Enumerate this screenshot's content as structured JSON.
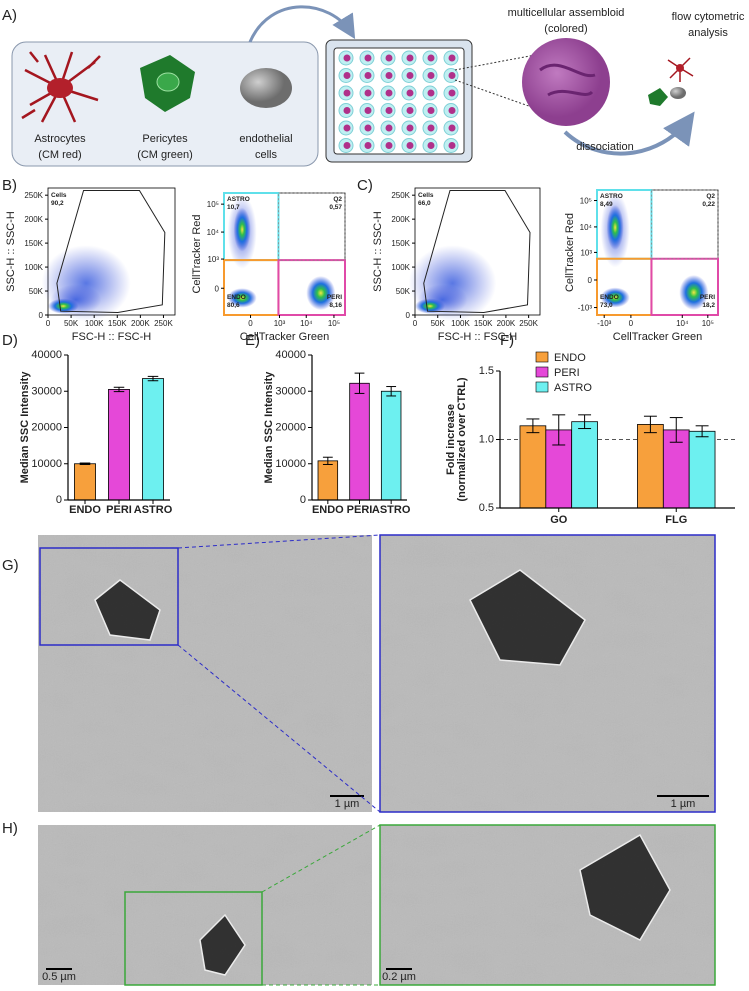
{
  "panel_a": {
    "label": "A)",
    "cells": [
      {
        "name": "Astrocytes",
        "stain": "(CM red)"
      },
      {
        "name": "Pericytes",
        "stain": "(CM green)"
      },
      {
        "name": "endothelial",
        "stain": "cells"
      }
    ],
    "assembloid": [
      "multicellular assembloid",
      "(colored)"
    ],
    "analysis": [
      "flow cytometric",
      "analysis"
    ],
    "step": "dissociation"
  },
  "flow": [
    {
      "label": "B)",
      "plots": [
        {
          "xlabel": "FSC-H :: FSC-H",
          "ylabel": "SSC-H :: SSC-H",
          "scale": "linear",
          "xlim": [
            0,
            275000
          ],
          "ylim": [
            0,
            265000
          ],
          "xticks": [
            0,
            {
              "value": 50000,
              "label": "50K"
            },
            {
              "value": 100000,
              "label": "100K"
            },
            {
              "value": 150000,
              "label": "150K"
            },
            {
              "value": 200000,
              "label": "200K"
            },
            {
              "value": 250000,
              "label": "250K"
            }
          ],
          "yticks": [
            0,
            {
              "value": 50000,
              "label": "50K"
            },
            {
              "value": 100000,
              "label": "100K"
            },
            {
              "value": 150000,
              "label": "150K"
            },
            {
              "value": 200000,
              "label": "200K"
            },
            {
              "value": 250000,
              "label": "250K"
            }
          ],
          "gates": [
            {
              "name": "Cells",
              "pct": "90,2"
            }
          ]
        },
        {
          "xlabel": "CellTracker Green",
          "ylabel": "CellTracker Red",
          "scale": "biex",
          "xlim": [
            -800,
            250000
          ],
          "ylim": [
            -800,
            250000
          ],
          "xticks": [
            0,
            {
              "value": 1000,
              "label": "10³"
            },
            {
              "value": 10000,
              "label": "10⁴"
            },
            {
              "value": 100000,
              "label": "10⁵"
            }
          ],
          "yticks": [
            0,
            {
              "value": 1000,
              "label": "10³"
            },
            {
              "value": 10000,
              "label": "10⁴"
            },
            {
              "value": 100000,
              "label": "10⁵"
            }
          ],
          "gates": [
            {
              "name": "ASTRO",
              "pct": "10,7"
            },
            {
              "name": "Q2",
              "pct": "0,57"
            },
            {
              "name": "ENDO",
              "pct": "80,6"
            },
            {
              "name": "PERI",
              "pct": "8,16"
            }
          ]
        }
      ]
    },
    {
      "label": "C)",
      "plots": [
        {
          "xlabel": "FSC-H :: FSC-H",
          "ylabel": "SSC-H :: SSC-H",
          "scale": "linear",
          "xlim": [
            0,
            275000
          ],
          "ylim": [
            0,
            265000
          ],
          "xticks": [
            0,
            {
              "value": 50000,
              "label": "50K"
            },
            {
              "value": 100000,
              "label": "100K"
            },
            {
              "value": 150000,
              "label": "150K"
            },
            {
              "value": 200000,
              "label": "200K"
            },
            {
              "value": 250000,
              "label": "250K"
            }
          ],
          "yticks": [
            0,
            {
              "value": 50000,
              "label": "50K"
            },
            {
              "value": 100000,
              "label": "100K"
            },
            {
              "value": 150000,
              "label": "150K"
            },
            {
              "value": 200000,
              "label": "200K"
            },
            {
              "value": 250000,
              "label": "250K"
            }
          ],
          "gates": [
            {
              "name": "Cells",
              "pct": "66,0"
            }
          ]
        },
        {
          "xlabel": "CellTracker Green",
          "ylabel": "CellTracker Red",
          "scale": "biex",
          "xlim": [
            -2000,
            250000
          ],
          "ylim": [
            -2000,
            250000
          ],
          "xticks": [
            {
              "value": -1000,
              "label": "-10³"
            },
            0,
            {
              "value": 10000,
              "label": "10⁴"
            },
            {
              "value": 100000,
              "label": "10⁵"
            }
          ],
          "yticks": [
            {
              "value": -1000,
              "label": "-10³"
            },
            0,
            {
              "value": 1000,
              "label": "10³"
            },
            {
              "value": 10000,
              "label": "10⁴"
            },
            {
              "value": 100000,
              "label": "10⁵"
            }
          ],
          "gates": [
            {
              "name": "ASTRO",
              "pct": "8,49"
            },
            {
              "name": "Q2",
              "pct": "0,22"
            },
            {
              "name": "ENDO",
              "pct": "73,0"
            },
            {
              "name": "PERI",
              "pct": "18,2"
            }
          ]
        }
      ]
    }
  ],
  "chart_data": [
    {
      "type": "bar",
      "panel": "D)",
      "ylabel": [
        "Median SSC Intensity"
      ],
      "categories": [
        "ENDO",
        "PERI",
        "ASTRO"
      ],
      "values": [
        10000,
        30500,
        33500
      ],
      "errors": [
        200,
        600,
        600
      ],
      "colors": [
        "#f7a03c",
        "#e548d8",
        "#6df0f0"
      ],
      "ylim": [
        0,
        40000
      ],
      "yticks": [
        0,
        10000,
        20000,
        30000,
        40000
      ]
    },
    {
      "type": "bar",
      "panel": "E)",
      "ylabel": [
        "Median SSC Intensity"
      ],
      "categories": [
        "ENDO",
        "PERI",
        "ASTRO"
      ],
      "values": [
        10800,
        32200,
        30000
      ],
      "errors": [
        1000,
        2800,
        1300
      ],
      "colors": [
        "#f7a03c",
        "#e548d8",
        "#6df0f0"
      ],
      "ylim": [
        0,
        40000
      ],
      "yticks": [
        0,
        10000,
        20000,
        30000,
        40000
      ]
    },
    {
      "type": "bar",
      "panel": "F)",
      "ylabel": [
        "Fold increase",
        "(normalized over CTRL)"
      ],
      "categories": [
        "GO",
        "FLG"
      ],
      "series": [
        {
          "name": "ENDO",
          "color": "#f7a03c",
          "values": [
            1.1,
            1.11
          ],
          "errors": [
            0.05,
            0.06
          ]
        },
        {
          "name": "PERI",
          "color": "#e548d8",
          "values": [
            1.07,
            1.07
          ],
          "errors": [
            0.11,
            0.09
          ]
        },
        {
          "name": "ASTRO",
          "color": "#6df0f0",
          "values": [
            1.13,
            1.06
          ],
          "errors": [
            0.05,
            0.04
          ]
        }
      ],
      "ylim": [
        0.5,
        1.5
      ],
      "yticks": [
        {
          "value": 0.5,
          "label": "0.5"
        },
        {
          "value": 1,
          "label": "1.0"
        },
        {
          "value": 1.5,
          "label": "1.5"
        }
      ],
      "reference": 1
    }
  ],
  "em": [
    {
      "label": "G)",
      "scale_bars": [
        "1 µm",
        "1 µm"
      ]
    },
    {
      "label": "H)",
      "scale_bars": [
        "0.5 µm",
        "0.2 µm"
      ]
    }
  ]
}
